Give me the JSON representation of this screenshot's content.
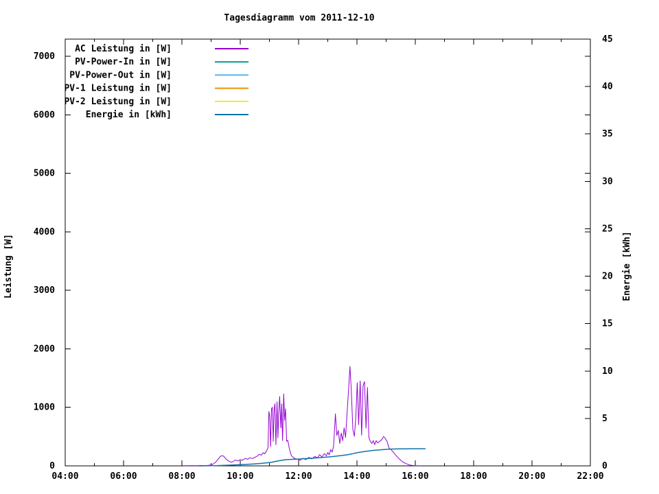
{
  "title": "Tagesdiagramm vom 2011-12-10",
  "chart_data": {
    "type": "line",
    "title": "Tagesdiagramm vom 2011-12-10",
    "grid": false,
    "legend_position": "top-left-inside",
    "x": {
      "unit": "time",
      "range_hours": [
        4,
        22
      ],
      "tick_labels": [
        "04:00",
        "06:00",
        "08:00",
        "10:00",
        "12:00",
        "14:00",
        "16:00",
        "18:00",
        "20:00",
        "22:00"
      ],
      "minor_tick_every_hours": 1
    },
    "y_left": {
      "title": "Leistung [W]",
      "range": [
        0,
        7300
      ],
      "tick_labels": [
        "0",
        "1000",
        "2000",
        "3000",
        "4000",
        "5000",
        "6000",
        "7000"
      ],
      "tick_step": 1000
    },
    "y_right": {
      "title": "Energie [kWh]",
      "range": [
        0,
        45
      ],
      "tick_labels": [
        "0",
        "5",
        "10",
        "15",
        "20",
        "25",
        "30",
        "35",
        "40",
        "45"
      ],
      "tick_step": 5
    },
    "series": [
      {
        "name": "AC Leistung in [W]",
        "color": "#9400d3",
        "axis": "left",
        "points": [
          [
            8.05,
            3
          ],
          [
            8.2,
            2
          ],
          [
            8.35,
            5
          ],
          [
            8.5,
            3
          ],
          [
            8.65,
            6
          ],
          [
            8.8,
            5
          ],
          [
            8.95,
            12
          ],
          [
            9.05,
            25
          ],
          [
            9.15,
            60
          ],
          [
            9.25,
            120
          ],
          [
            9.33,
            168
          ],
          [
            9.4,
            175
          ],
          [
            9.46,
            150
          ],
          [
            9.52,
            112
          ],
          [
            9.6,
            85
          ],
          [
            9.68,
            62
          ],
          [
            9.75,
            72
          ],
          [
            9.83,
            100
          ],
          [
            9.92,
            85
          ],
          [
            10.0,
            108
          ],
          [
            10.08,
            95
          ],
          [
            10.17,
            128
          ],
          [
            10.25,
            112
          ],
          [
            10.33,
            138
          ],
          [
            10.42,
            125
          ],
          [
            10.5,
            148
          ],
          [
            10.58,
            165
          ],
          [
            10.65,
            198
          ],
          [
            10.72,
            182
          ],
          [
            10.78,
            225
          ],
          [
            10.84,
            208
          ],
          [
            10.9,
            255
          ],
          [
            10.95,
            310
          ],
          [
            10.98,
            930
          ],
          [
            11.01,
            855
          ],
          [
            11.04,
            330
          ],
          [
            11.07,
            975
          ],
          [
            11.1,
            1000
          ],
          [
            11.13,
            420
          ],
          [
            11.16,
            950
          ],
          [
            11.19,
            1065
          ],
          [
            11.22,
            360
          ],
          [
            11.26,
            1095
          ],
          [
            11.29,
            480
          ],
          [
            11.32,
            920
          ],
          [
            11.35,
            1185
          ],
          [
            11.39,
            650
          ],
          [
            11.42,
            1060
          ],
          [
            11.45,
            430
          ],
          [
            11.49,
            1230
          ],
          [
            11.52,
            780
          ],
          [
            11.55,
            975
          ],
          [
            11.59,
            420
          ],
          [
            11.63,
            435
          ],
          [
            11.68,
            300
          ],
          [
            11.75,
            175
          ],
          [
            11.85,
            130
          ],
          [
            11.95,
            112
          ],
          [
            12.05,
            95
          ],
          [
            12.15,
            130
          ],
          [
            12.25,
            105
          ],
          [
            12.35,
            145
          ],
          [
            12.45,
            120
          ],
          [
            12.55,
            160
          ],
          [
            12.65,
            140
          ],
          [
            12.72,
            192
          ],
          [
            12.8,
            152
          ],
          [
            12.88,
            210
          ],
          [
            12.95,
            172
          ],
          [
            13.0,
            230
          ],
          [
            13.05,
            188
          ],
          [
            13.1,
            278
          ],
          [
            13.15,
            235
          ],
          [
            13.2,
            345
          ],
          [
            13.26,
            890
          ],
          [
            13.31,
            520
          ],
          [
            13.36,
            605
          ],
          [
            13.41,
            382
          ],
          [
            13.46,
            560
          ],
          [
            13.51,
            432
          ],
          [
            13.56,
            650
          ],
          [
            13.61,
            485
          ],
          [
            13.66,
            905
          ],
          [
            13.71,
            1285
          ],
          [
            13.76,
            1700
          ],
          [
            13.81,
            1255
          ],
          [
            13.86,
            625
          ],
          [
            13.91,
            505
          ],
          [
            13.96,
            825
          ],
          [
            14.01,
            1420
          ],
          [
            14.06,
            705
          ],
          [
            14.11,
            1450
          ],
          [
            14.16,
            525
          ],
          [
            14.21,
            1370
          ],
          [
            14.26,
            1440
          ],
          [
            14.31,
            645
          ],
          [
            14.36,
            1340
          ],
          [
            14.41,
            480
          ],
          [
            14.46,
            420
          ],
          [
            14.51,
            382
          ],
          [
            14.56,
            432
          ],
          [
            14.61,
            362
          ],
          [
            14.66,
            432
          ],
          [
            14.71,
            392
          ],
          [
            14.76,
            412
          ],
          [
            14.81,
            432
          ],
          [
            14.86,
            452
          ],
          [
            14.91,
            502
          ],
          [
            14.96,
            478
          ],
          [
            15.03,
            420
          ],
          [
            15.1,
            302
          ],
          [
            15.17,
            278
          ],
          [
            15.25,
            232
          ],
          [
            15.33,
            182
          ],
          [
            15.42,
            132
          ],
          [
            15.5,
            95
          ],
          [
            15.58,
            65
          ],
          [
            15.67,
            42
          ],
          [
            15.75,
            25
          ],
          [
            15.83,
            12
          ],
          [
            15.92,
            6
          ],
          [
            16.0,
            3
          ],
          [
            16.1,
            2
          ],
          [
            16.19,
            1
          ]
        ]
      },
      {
        "name": "PV-Power-In in [W]",
        "color": "#00998a",
        "axis": "left",
        "points": []
      },
      {
        "name": "PV-Power-Out in [W]",
        "color": "#56b4e9",
        "axis": "left",
        "points": []
      },
      {
        "name": "PV-1 Leistung in [W]",
        "color": "#e69500",
        "axis": "left",
        "points": []
      },
      {
        "name": "PV-2 Leistung in [W]",
        "color": "#f0e442",
        "axis": "left",
        "points": []
      },
      {
        "name": "Energie in [kWh]",
        "color": "#0f72a8",
        "axis": "right",
        "points": [
          [
            8.7,
            0.0
          ],
          [
            9.0,
            0.02
          ],
          [
            9.2,
            0.03
          ],
          [
            9.6,
            0.07
          ],
          [
            10.0,
            0.12
          ],
          [
            10.4,
            0.19
          ],
          [
            10.7,
            0.25
          ],
          [
            10.95,
            0.33
          ],
          [
            11.1,
            0.4
          ],
          [
            11.25,
            0.5
          ],
          [
            11.4,
            0.58
          ],
          [
            11.55,
            0.65
          ],
          [
            11.7,
            0.68
          ],
          [
            11.9,
            0.71
          ],
          [
            12.1,
            0.74
          ],
          [
            12.3,
            0.78
          ],
          [
            12.5,
            0.82
          ],
          [
            12.7,
            0.86
          ],
          [
            12.9,
            0.91
          ],
          [
            13.1,
            0.96
          ],
          [
            13.3,
            1.03
          ],
          [
            13.5,
            1.1
          ],
          [
            13.7,
            1.19
          ],
          [
            13.85,
            1.28
          ],
          [
            14.0,
            1.38
          ],
          [
            14.15,
            1.46
          ],
          [
            14.3,
            1.53
          ],
          [
            14.45,
            1.59
          ],
          [
            14.6,
            1.64
          ],
          [
            14.75,
            1.68
          ],
          [
            14.9,
            1.72
          ],
          [
            15.05,
            1.75
          ],
          [
            15.2,
            1.77
          ],
          [
            15.4,
            1.79
          ],
          [
            15.7,
            1.8
          ],
          [
            16.0,
            1.81
          ],
          [
            16.35,
            1.81
          ]
        ]
      }
    ]
  }
}
